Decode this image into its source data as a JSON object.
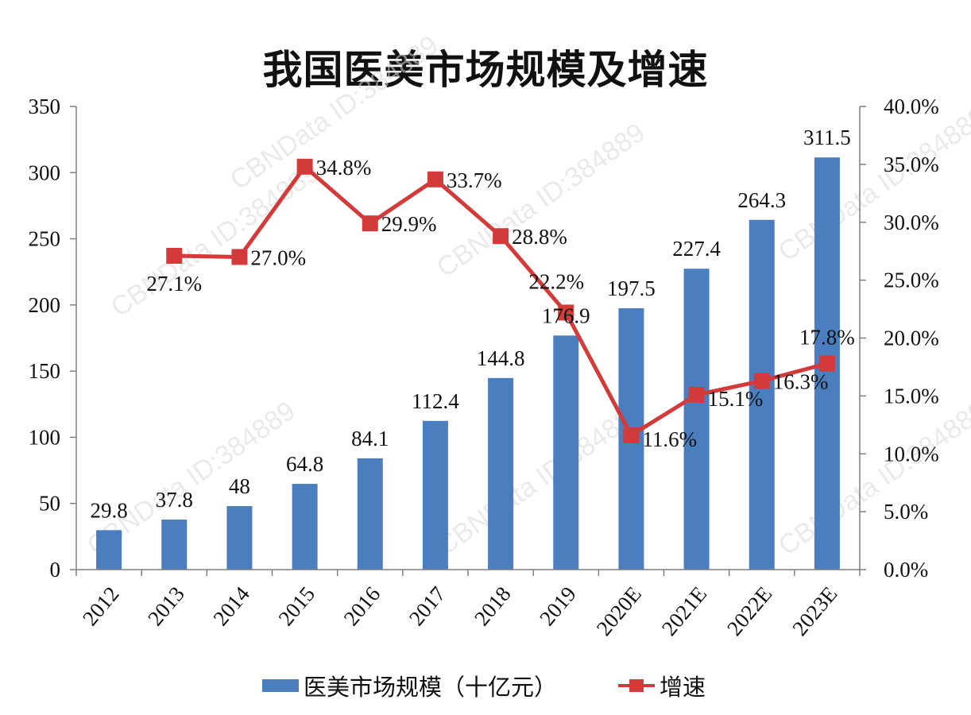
{
  "title": "我国医美市场规模及增速",
  "watermark": "CBNData ID:384889",
  "colors": {
    "bar": "#4a7ebf",
    "line": "#d33a3a",
    "axis": "#7f7f7f",
    "text": "#111111"
  },
  "legend": {
    "bar_label": "医美市场规模（十亿元）",
    "line_label": "增速"
  },
  "chart_data": {
    "type": "bar+line",
    "title": "我国医美市场规模及增速",
    "categories": [
      "2012",
      "2013",
      "2014",
      "2015",
      "2016",
      "2017",
      "2018",
      "2019",
      "2020E",
      "2021E",
      "2022E",
      "2023E"
    ],
    "series": [
      {
        "name": "医美市场规模（十亿元）",
        "type": "bar",
        "axis": "left",
        "values": [
          29.8,
          37.8,
          48,
          64.8,
          84.1,
          112.4,
          144.8,
          176.9,
          197.5,
          227.4,
          264.3,
          311.5
        ],
        "labels": [
          "29.8",
          "37.8",
          "48",
          "64.8",
          "84.1",
          "112.4",
          "144.8",
          "176.9",
          "197.5",
          "227.4",
          "264.3",
          "311.5"
        ]
      },
      {
        "name": "增速",
        "type": "line",
        "axis": "right",
        "values": [
          null,
          27.1,
          27.0,
          34.8,
          29.9,
          33.7,
          28.8,
          22.2,
          11.6,
          15.1,
          16.3,
          17.8
        ],
        "labels": [
          "",
          "27.1%",
          "27.0%",
          "34.8%",
          "29.9%",
          "33.7%",
          "28.8%",
          "22.2%",
          "11.6%",
          "15.1%",
          "16.3%",
          "17.8%"
        ]
      }
    ],
    "y_left": {
      "min": 0,
      "max": 350,
      "ticks": [
        "0",
        "50",
        "100",
        "150",
        "200",
        "250",
        "300",
        "350"
      ]
    },
    "y_right": {
      "min": 0,
      "max": 40,
      "ticks": [
        "0.0%",
        "5.0%",
        "10.0%",
        "15.0%",
        "20.0%",
        "25.0%",
        "30.0%",
        "35.0%",
        "40.0%"
      ]
    },
    "xlabel": "",
    "ylabel": "",
    "grid": false,
    "legend_position": "bottom"
  }
}
